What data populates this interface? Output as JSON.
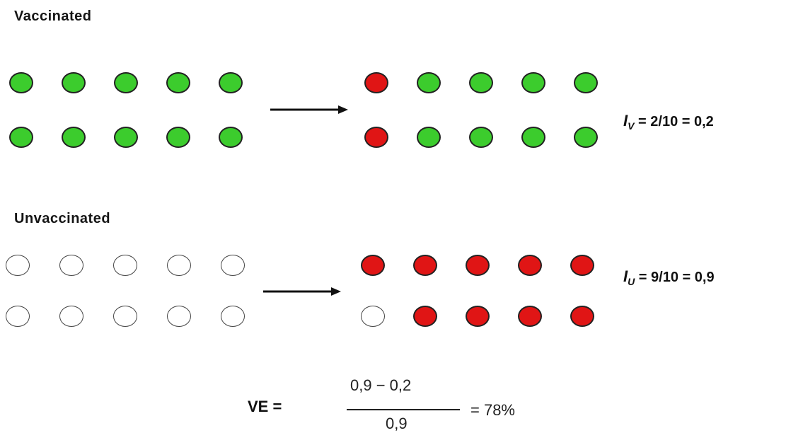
{
  "vaccinated": {
    "label": "Vaccinated",
    "before": [
      "green",
      "green",
      "green",
      "green",
      "green",
      "green",
      "green",
      "green",
      "green",
      "green"
    ],
    "after": [
      "red",
      "green",
      "green",
      "green",
      "green",
      "red",
      "green",
      "green",
      "green",
      "green"
    ],
    "formula": {
      "symbol": "I",
      "sub": "V",
      "expr": " = 2/10 = 0,2"
    }
  },
  "unvaccinated": {
    "label": "Unvaccinated",
    "before": [
      "white",
      "white",
      "white",
      "white",
      "white",
      "white",
      "white",
      "white",
      "white",
      "white"
    ],
    "after": [
      "red",
      "red",
      "red",
      "red",
      "red",
      "white",
      "red",
      "red",
      "red",
      "red"
    ],
    "formula": {
      "symbol": "I",
      "sub": "U",
      "expr": " = 9/10 = 0,9"
    }
  },
  "ve": {
    "label": "VE =",
    "numerator": "0,9 − 0,2",
    "denominator": "0,9",
    "result": "= 78%"
  },
  "colors": {
    "green": "#3ccc2d",
    "red": "#e01515",
    "white": "#ffffff"
  }
}
